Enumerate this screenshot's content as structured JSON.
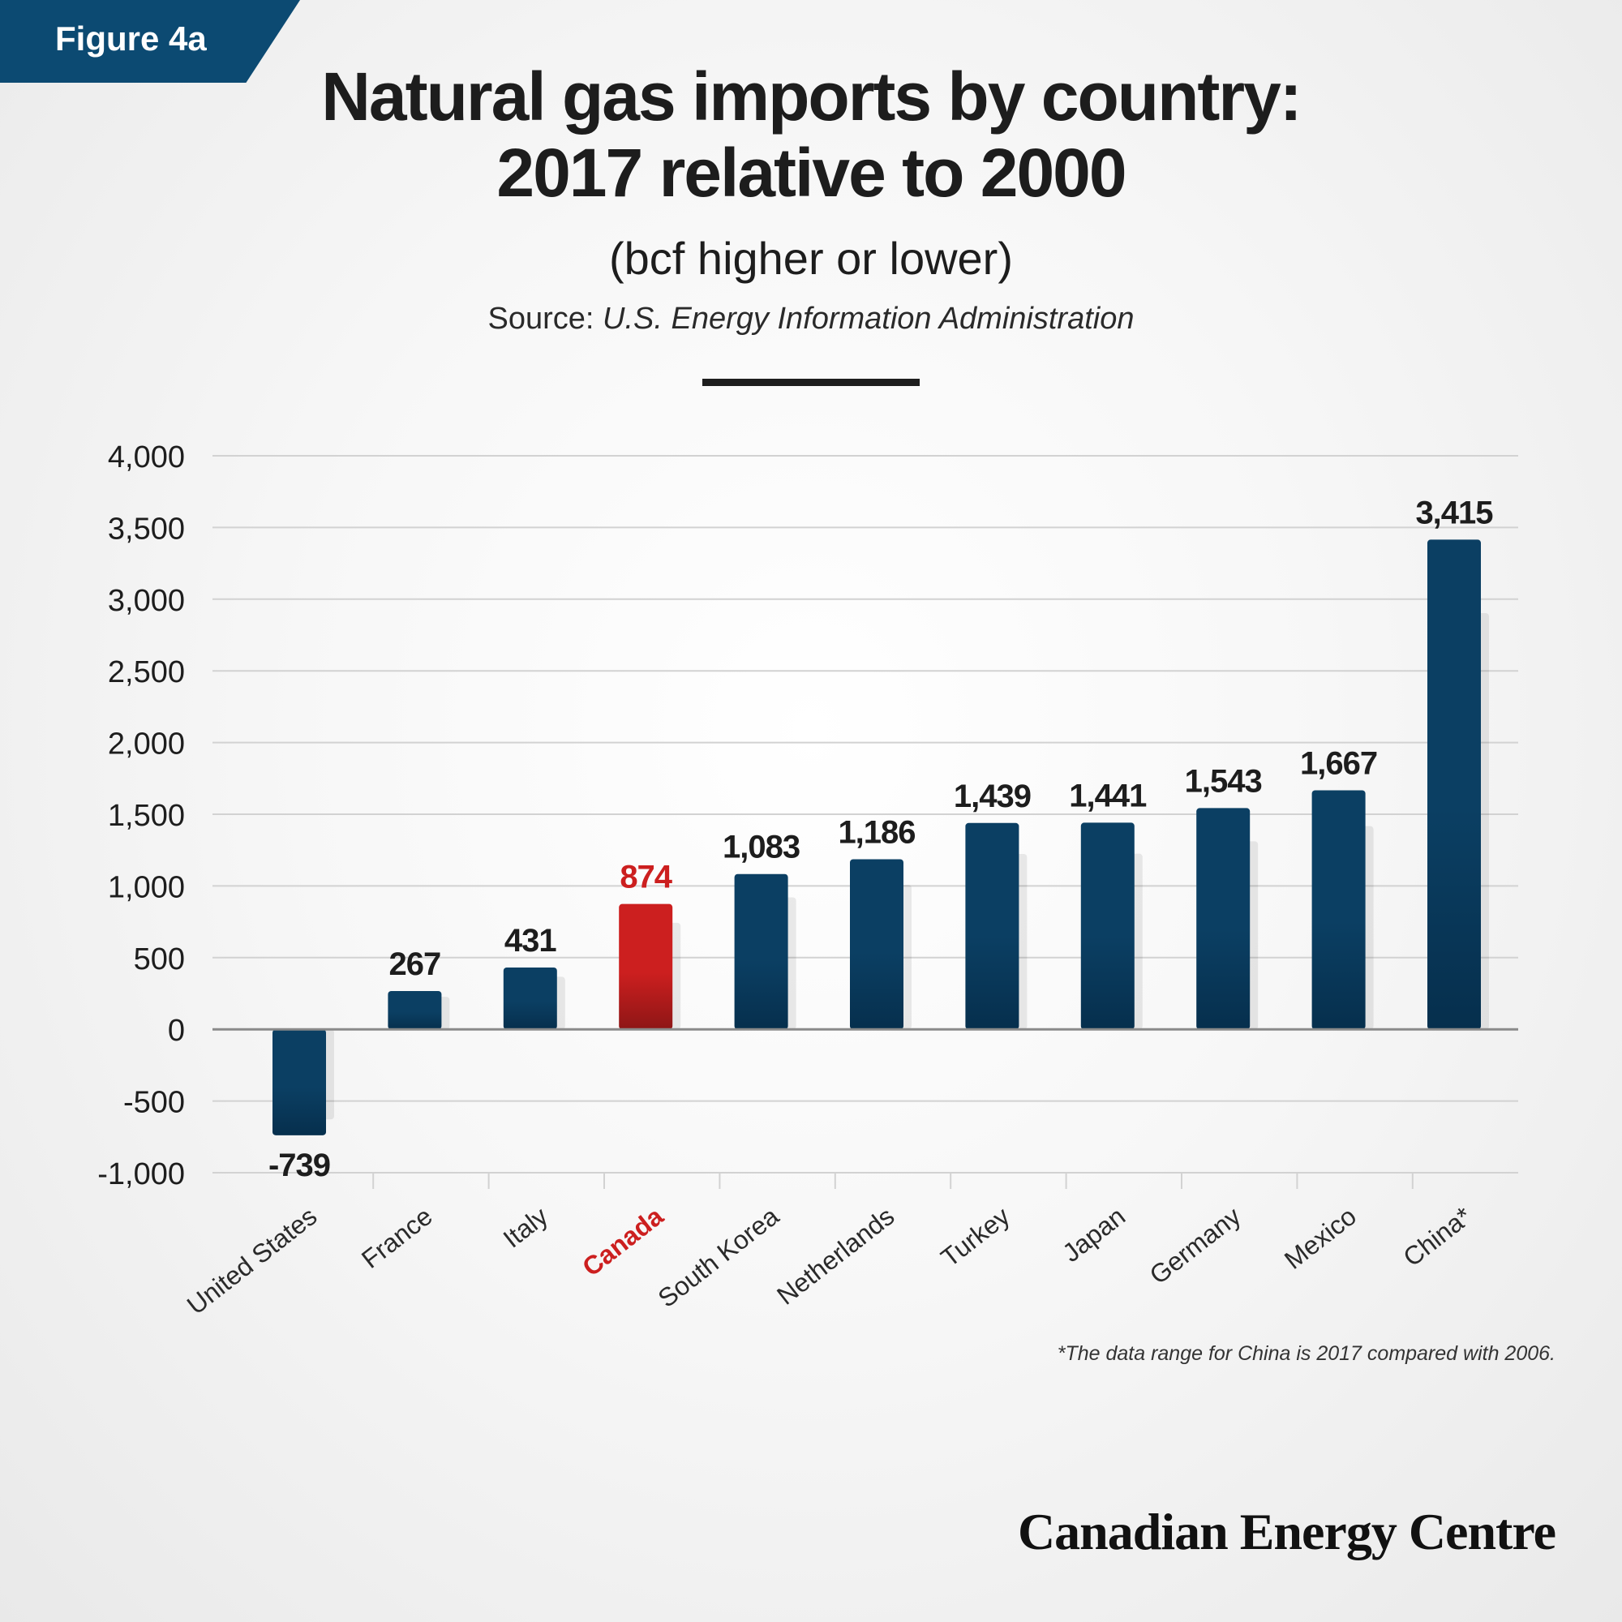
{
  "figure_tag": "Figure 4a",
  "title_line1": "Natural gas imports by country:",
  "title_line2": "2017 relative to 2000",
  "subtitle": "(bcf higher or lower)",
  "source_label": "Source:",
  "source_name": "U.S. Energy Information Administration",
  "footnote": "*The data range for China is 2017 compared with 2006.",
  "brand": "Canadian Energy Centre",
  "colors": {
    "bar": "#0b3f63",
    "bar_dark": "#062f4d",
    "highlight": "#cc1f1f",
    "highlight_dark": "#8e1616",
    "axis": "#8a8a8a",
    "grid": "#d2d2d2"
  },
  "chart_data": {
    "type": "bar",
    "categories": [
      "United States",
      "France",
      "Italy",
      "Canada",
      "South Korea",
      "Netherlands",
      "Turkey",
      "Japan",
      "Germany",
      "Mexico",
      "China*"
    ],
    "values": [
      -739,
      267,
      431,
      874,
      1083,
      1186,
      1439,
      1441,
      1543,
      1667,
      3415
    ],
    "value_labels": [
      "-739",
      "267",
      "431",
      "874",
      "1,083",
      "1,186",
      "1,439",
      "1,441",
      "1,543",
      "1,667",
      "3,415"
    ],
    "highlight_category": "Canada",
    "ylim": [
      -1000,
      4000
    ],
    "yticks": [
      4000,
      3500,
      3000,
      2500,
      2000,
      1500,
      1000,
      500,
      0,
      -500,
      -1000
    ],
    "ytick_labels": [
      "4,000",
      "3,500",
      "3,000",
      "2,500",
      "2,000",
      "1,500",
      "1,000",
      "500",
      "0",
      "-500",
      "-1,000"
    ],
    "grid": true,
    "legend": "none"
  }
}
